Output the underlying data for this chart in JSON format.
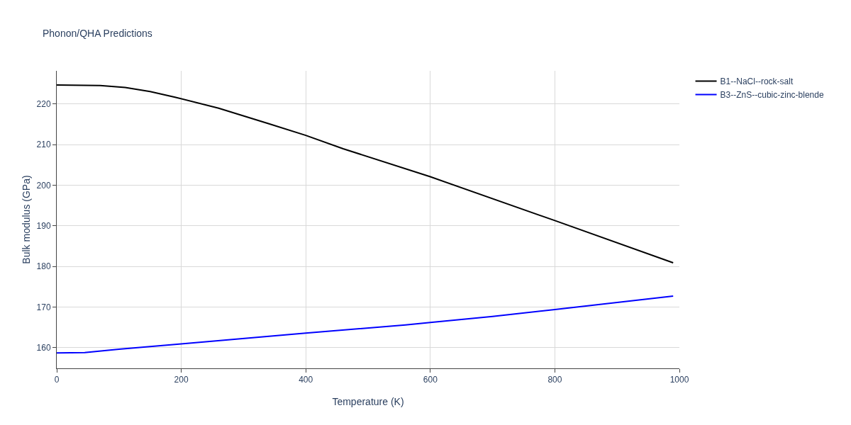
{
  "chart_data": {
    "type": "line",
    "title": "Phonon/QHA Predictions",
    "xlabel": "Temperature (K)",
    "ylabel": "Bulk modulus (GPa)",
    "xlim": [
      0,
      1000
    ],
    "xticks": [
      0,
      200,
      400,
      600,
      800,
      1000
    ],
    "ylim": [
      154.9,
      228.2
    ],
    "yticks": [
      160,
      170,
      180,
      190,
      200,
      210,
      220
    ],
    "grid": true,
    "legend": "top right",
    "line_style": "solid",
    "marker": "none",
    "series": [
      {
        "name": "B1--NaCl--rock-salt",
        "color": "#000000",
        "x": [
          0,
          70,
          110,
          150,
          190,
          260,
          340,
          400,
          460,
          600,
          800,
          990
        ],
        "values": [
          224.7,
          224.6,
          224.1,
          223.1,
          221.7,
          219.0,
          215.2,
          212.3,
          209.0,
          202.1,
          191.3,
          180.9
        ]
      },
      {
        "name": "B3--ZnS--cubic-zinc-blende",
        "color": "#0000ff",
        "x": [
          0,
          45,
          100,
          200,
          400,
          560,
          600,
          700,
          800,
          990
        ],
        "values": [
          158.7,
          158.8,
          159.6,
          160.9,
          163.6,
          165.6,
          166.2,
          167.7,
          169.4,
          172.7
        ]
      }
    ]
  }
}
